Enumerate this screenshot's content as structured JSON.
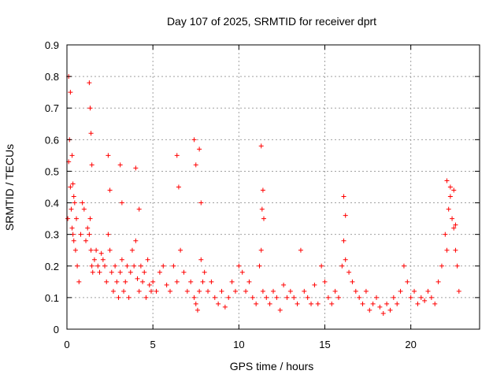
{
  "chart_data": {
    "type": "scatter",
    "title": "Day 107 of 2025, SRMTID for receiver dprt",
    "xlabel": "GPS time / hours",
    "ylabel": "SRMTID / TECUs",
    "xlim": [
      0,
      24
    ],
    "ylim": [
      0,
      0.9
    ],
    "xticks": [
      0,
      5,
      10,
      15,
      20
    ],
    "yticks": [
      0,
      0.1,
      0.2,
      0.3,
      0.4,
      0.5,
      0.6,
      0.7,
      0.8,
      0.9
    ],
    "grid": true,
    "marker": "+",
    "series": [
      {
        "name": "SRMTID",
        "color": "#ff0000",
        "x": [
          0.05,
          0.1,
          0.15,
          0.2,
          0.25,
          0.3,
          0.35,
          0.4,
          0.45,
          0.5,
          0.55,
          0.6,
          0.7,
          0.8,
          0.9,
          1.0,
          1.1,
          1.2,
          1.3,
          1.35,
          1.4,
          1.45,
          1.5,
          1.6,
          1.7,
          1.8,
          1.9,
          2.0,
          2.1,
          2.2,
          2.3,
          2.4,
          2.5,
          2.6,
          2.7,
          2.8,
          2.9,
          3.0,
          3.1,
          3.2,
          3.3,
          3.4,
          3.5,
          3.6,
          3.7,
          3.8,
          3.9,
          4.0,
          4.1,
          4.2,
          4.3,
          4.4,
          4.5,
          4.6,
          4.7,
          4.8,
          4.9,
          5.0,
          5.2,
          5.4,
          5.6,
          5.8,
          6.0,
          6.2,
          6.4,
          6.6,
          6.8,
          7.0,
          7.2,
          7.4,
          7.5,
          7.6,
          7.7,
          7.8,
          7.9,
          8.0,
          8.2,
          8.4,
          8.6,
          8.8,
          9.0,
          9.2,
          9.4,
          9.6,
          9.8,
          10.0,
          10.2,
          10.4,
          10.6,
          10.8,
          11.0,
          11.2,
          11.3,
          11.4,
          11.6,
          11.8,
          12.0,
          12.2,
          12.4,
          12.6,
          12.8,
          13.0,
          13.2,
          13.4,
          13.6,
          13.8,
          14.0,
          14.2,
          14.4,
          14.6,
          14.8,
          15.0,
          15.2,
          15.4,
          15.6,
          15.8,
          16.0,
          16.1,
          16.2,
          16.4,
          16.6,
          16.8,
          17.0,
          17.2,
          17.4,
          17.6,
          17.8,
          18.0,
          18.2,
          18.4,
          18.6,
          18.8,
          19.0,
          19.2,
          19.4,
          19.6,
          19.8,
          20.0,
          20.2,
          20.4,
          20.6,
          20.8,
          21.0,
          21.2,
          21.4,
          21.6,
          21.8,
          22.0,
          22.1,
          22.2,
          22.3,
          22.4,
          22.5,
          22.6,
          22.7,
          22.8,
          0.1,
          0.2,
          0.3,
          0.35,
          0.4,
          1.3,
          1.35,
          1.4,
          1.45,
          2.4,
          2.5,
          3.1,
          3.2,
          4.0,
          4.2,
          6.4,
          6.5,
          7.4,
          7.5,
          7.7,
          7.8,
          11.3,
          11.4,
          11.35,
          11.45,
          16.1,
          16.2,
          22.1,
          22.3,
          22.5,
          22.6
        ],
        "y": [
          0.35,
          0.53,
          0.6,
          0.45,
          0.38,
          0.32,
          0.3,
          0.28,
          0.4,
          0.25,
          0.35,
          0.2,
          0.15,
          0.3,
          0.4,
          0.38,
          0.28,
          0.32,
          0.3,
          0.35,
          0.25,
          0.2,
          0.18,
          0.22,
          0.25,
          0.2,
          0.18,
          0.24,
          0.22,
          0.2,
          0.15,
          0.3,
          0.25,
          0.18,
          0.12,
          0.2,
          0.15,
          0.1,
          0.18,
          0.22,
          0.12,
          0.15,
          0.2,
          0.1,
          0.18,
          0.25,
          0.2,
          0.28,
          0.16,
          0.12,
          0.2,
          0.15,
          0.18,
          0.1,
          0.22,
          0.14,
          0.12,
          0.15,
          0.12,
          0.18,
          0.2,
          0.14,
          0.12,
          0.2,
          0.15,
          0.25,
          0.18,
          0.12,
          0.15,
          0.1,
          0.08,
          0.06,
          0.12,
          0.22,
          0.15,
          0.18,
          0.12,
          0.15,
          0.1,
          0.08,
          0.12,
          0.07,
          0.1,
          0.15,
          0.12,
          0.2,
          0.18,
          0.12,
          0.15,
          0.1,
          0.08,
          0.2,
          0.25,
          0.12,
          0.1,
          0.08,
          0.12,
          0.1,
          0.06,
          0.14,
          0.1,
          0.12,
          0.1,
          0.08,
          0.25,
          0.12,
          0.1,
          0.08,
          0.14,
          0.08,
          0.2,
          0.15,
          0.1,
          0.08,
          0.12,
          0.1,
          0.2,
          0.28,
          0.22,
          0.18,
          0.15,
          0.12,
          0.1,
          0.08,
          0.12,
          0.06,
          0.08,
          0.1,
          0.07,
          0.05,
          0.08,
          0.06,
          0.1,
          0.08,
          0.12,
          0.2,
          0.15,
          0.1,
          0.12,
          0.08,
          0.1,
          0.09,
          0.12,
          0.1,
          0.08,
          0.15,
          0.2,
          0.3,
          0.25,
          0.38,
          0.45,
          0.35,
          0.32,
          0.25,
          0.2,
          0.12,
          0.8,
          0.75,
          0.55,
          0.46,
          0.42,
          0.78,
          0.7,
          0.62,
          0.52,
          0.55,
          0.44,
          0.52,
          0.4,
          0.51,
          0.38,
          0.55,
          0.45,
          0.6,
          0.52,
          0.57,
          0.4,
          0.58,
          0.44,
          0.38,
          0.35,
          0.42,
          0.36,
          0.47,
          0.42,
          0.44,
          0.33
        ]
      }
    ]
  }
}
